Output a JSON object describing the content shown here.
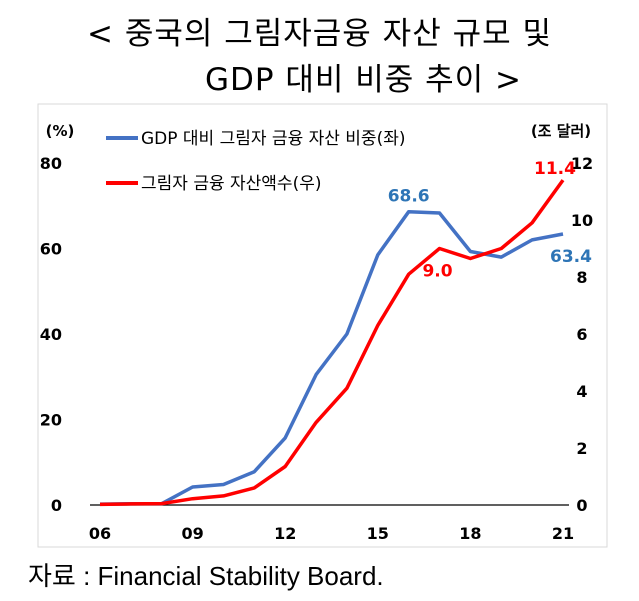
{
  "title_line1": "< 중국의 그림자금융 자산 규모 및",
  "title_line2": "GDP 대비 비중 추이 >",
  "source": "자료 : Financial Stability Board.",
  "chart_data": {
    "type": "line",
    "left_unit": "(%)",
    "right_unit": "(조 달러)",
    "x_ticks": [
      "06",
      "09",
      "12",
      "15",
      "18",
      "21"
    ],
    "x": [
      2006,
      2007,
      2008,
      2009,
      2010,
      2011,
      2012,
      2013,
      2014,
      2015,
      2016,
      2017,
      2018,
      2019,
      2020,
      2021
    ],
    "y_left_lim": [
      0,
      80
    ],
    "y_left_ticks": [
      "0",
      "20",
      "40",
      "60",
      "80"
    ],
    "y_right_lim": [
      0,
      12
    ],
    "y_right_ticks": [
      "0",
      "2",
      "4",
      "6",
      "8",
      "10",
      "12"
    ],
    "grid": false,
    "legend_position": "top-left",
    "series": [
      {
        "name": "GDP 대비 그림자 금융 자산 비중(좌)",
        "axis": "left",
        "color": "#4472c4",
        "values": [
          0.2,
          0.3,
          0.3,
          4.2,
          4.8,
          7.8,
          15.7,
          30.5,
          40.0,
          58.5,
          68.6,
          68.3,
          59.3,
          58.0,
          62.0,
          63.4
        ]
      },
      {
        "name": "그림자 금융 자산액수(우)",
        "axis": "right",
        "color": "#ff0000",
        "values": [
          0.02,
          0.04,
          0.05,
          0.22,
          0.32,
          0.6,
          1.35,
          2.9,
          4.1,
          6.3,
          8.1,
          9.0,
          8.65,
          9.0,
          9.9,
          11.4
        ]
      }
    ],
    "annotations": [
      {
        "series": 0,
        "index": 10,
        "label": "68.6",
        "color": "#2e75b6"
      },
      {
        "series": 0,
        "index": 15,
        "label": "63.4",
        "color": "#2e75b6"
      },
      {
        "series": 1,
        "index": 11,
        "label": "9.0",
        "color": "#ff0000"
      },
      {
        "series": 1,
        "index": 15,
        "label": "11.4",
        "color": "#ff0000"
      }
    ]
  }
}
